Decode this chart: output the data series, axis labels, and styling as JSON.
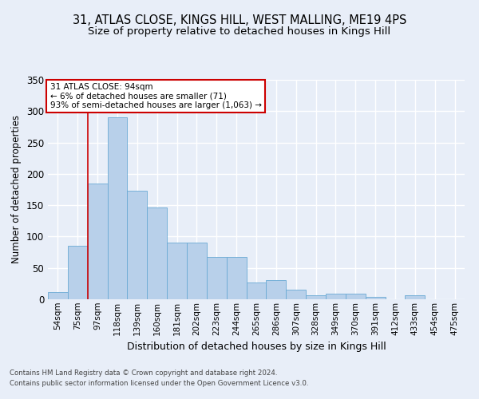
{
  "title_line1": "31, ATLAS CLOSE, KINGS HILL, WEST MALLING, ME19 4PS",
  "title_line2": "Size of property relative to detached houses in Kings Hill",
  "xlabel": "Distribution of detached houses by size in Kings Hill",
  "ylabel": "Number of detached properties",
  "categories": [
    "54sqm",
    "75sqm",
    "97sqm",
    "118sqm",
    "139sqm",
    "160sqm",
    "181sqm",
    "202sqm",
    "223sqm",
    "244sqm",
    "265sqm",
    "286sqm",
    "307sqm",
    "328sqm",
    "349sqm",
    "370sqm",
    "391sqm",
    "412sqm",
    "433sqm",
    "454sqm",
    "475sqm"
  ],
  "values": [
    12,
    85,
    185,
    290,
    173,
    146,
    91,
    91,
    68,
    68,
    27,
    30,
    15,
    7,
    9,
    9,
    4,
    0,
    6,
    0,
    0
  ],
  "bar_color": "#b8d0ea",
  "bar_edge_color": "#6aaad4",
  "vline_x": 1.5,
  "annotation_title": "31 ATLAS CLOSE: 94sqm",
  "annotation_line2": "← 6% of detached houses are smaller (71)",
  "annotation_line3": "93% of semi-detached houses are larger (1,063) →",
  "annotation_box_color": "#ffffff",
  "annotation_box_edge": "#cc0000",
  "vline_color": "#cc0000",
  "footnote1": "Contains HM Land Registry data © Crown copyright and database right 2024.",
  "footnote2": "Contains public sector information licensed under the Open Government Licence v3.0.",
  "ylim": [
    0,
    350
  ],
  "bg_color": "#e8eef8",
  "plot_bg_color": "#e8eef8",
  "grid_color": "#ffffff",
  "title_fontsize": 10.5,
  "subtitle_fontsize": 9.5,
  "tick_fontsize": 7.5,
  "ylabel_fontsize": 8.5,
  "xlabel_fontsize": 9
}
